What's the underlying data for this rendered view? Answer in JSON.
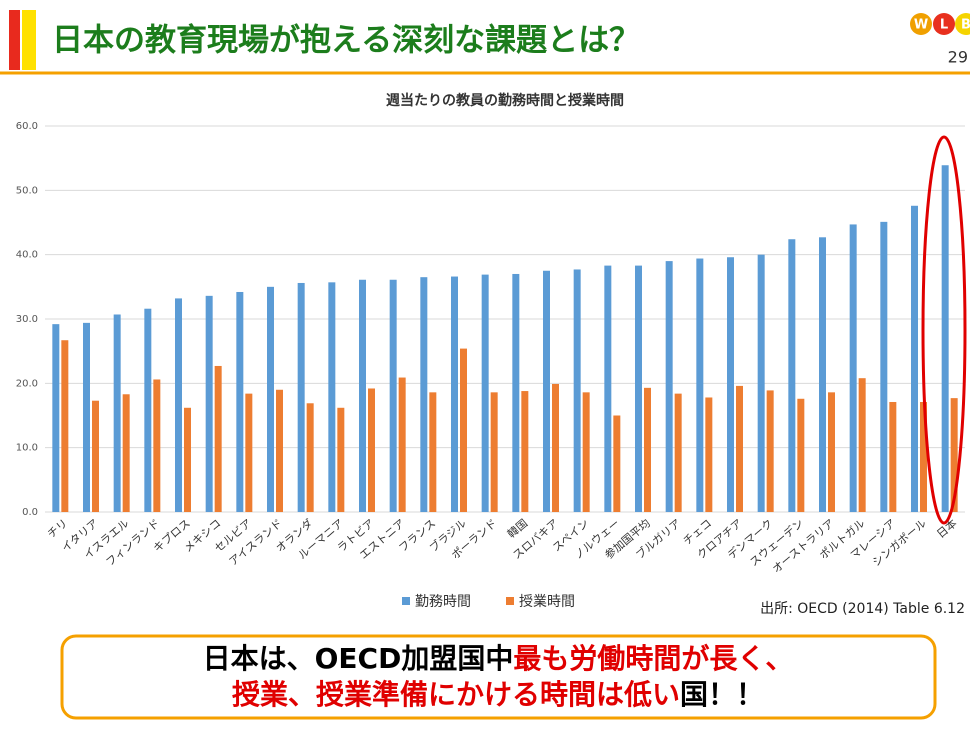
{
  "header": {
    "title": "日本の教育現場が抱える深刻な課題とは？",
    "page_number": "29",
    "logo": [
      "W",
      "L",
      "B"
    ]
  },
  "chart_data": {
    "type": "bar",
    "title": "週当たりの教員の勤務時間と授業時間",
    "categories": [
      "チリ",
      "イタリア",
      "イスラエル",
      "フィンランド",
      "キプロス",
      "メキシコ",
      "セルビア",
      "アイスランド",
      "オランダ",
      "ルーマニア",
      "ラトビア",
      "エストニア",
      "フランス",
      "ブラジル",
      "ポーランド",
      "韓国",
      "スロバキア",
      "スペイン",
      "ノルウェー",
      "参加国平均",
      "ブルガリア",
      "チェコ",
      "クロアチア",
      "デンマーク",
      "スウェーデン",
      "オーストラリア",
      "ポルトガル",
      "マレーシア",
      "シンガポール",
      "日本"
    ],
    "series": [
      {
        "name": "勤務時間",
        "color": "#5b9bd5",
        "values": [
          29.2,
          29.4,
          30.7,
          31.6,
          33.2,
          33.6,
          34.2,
          35.0,
          35.6,
          35.7,
          36.1,
          36.1,
          36.5,
          36.6,
          36.9,
          37.0,
          37.5,
          37.7,
          38.3,
          38.3,
          39.0,
          39.4,
          39.6,
          40.0,
          42.4,
          42.7,
          44.7,
          45.1,
          47.6,
          53.9
        ]
      },
      {
        "name": "授業時間",
        "color": "#ed7d31",
        "values": [
          26.7,
          17.3,
          18.3,
          20.6,
          16.2,
          22.7,
          18.4,
          19.0,
          16.9,
          16.2,
          19.2,
          20.9,
          18.6,
          25.4,
          18.6,
          18.8,
          19.9,
          18.6,
          15.0,
          19.3,
          18.4,
          17.8,
          19.6,
          18.9,
          17.6,
          18.6,
          20.8,
          17.1,
          17.1,
          17.7
        ]
      }
    ],
    "ylim": [
      0,
      60
    ],
    "yticks": [
      {
        "value": 0,
        "label": "0.0"
      },
      {
        "value": 10,
        "label": "10.0"
      },
      {
        "value": 20,
        "label": "20.0"
      },
      {
        "value": 30,
        "label": "30.0"
      },
      {
        "value": 40,
        "label": "40.0"
      },
      {
        "value": 50,
        "label": "50.0"
      },
      {
        "value": 60,
        "label": "60.0"
      }
    ],
    "grid": true,
    "legend": "bottom",
    "source": "出所: OECD (2014) Table 6.12"
  },
  "message": {
    "lines": [
      [
        {
          "text": "日本は、OECD加盟国中",
          "color": "#000000"
        },
        {
          "text": "最も労働時間が長く、",
          "color": "#e00000"
        }
      ],
      [
        {
          "text": "授業、授業準備にかける時間は低い",
          "color": "#e00000"
        },
        {
          "text": "国！！",
          "color": "#000000"
        }
      ]
    ]
  }
}
